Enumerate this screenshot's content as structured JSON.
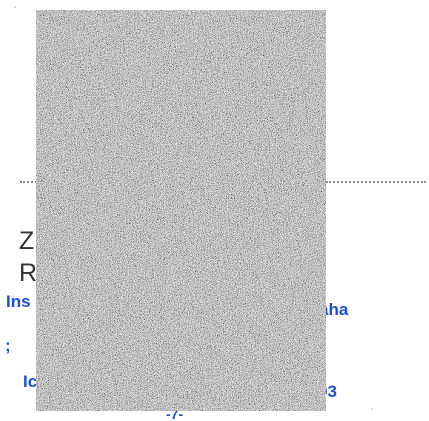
{
  "text_fragments": {
    "z_letter": "Z",
    "r_letter": "R",
    "ins_fragment": "Ins",
    "aha_fragment": "aha",
    "semicolon_fragment": ";",
    "ic_fragment": "Ic",
    "num_fragment": "93",
    "bottom_fragment": "-7-"
  },
  "colors": {
    "link_blue": "#1a4fd6",
    "noise_base": "#9a9a9a",
    "dotted_rule": "#8a8a8a",
    "text_gray": "#333333"
  }
}
